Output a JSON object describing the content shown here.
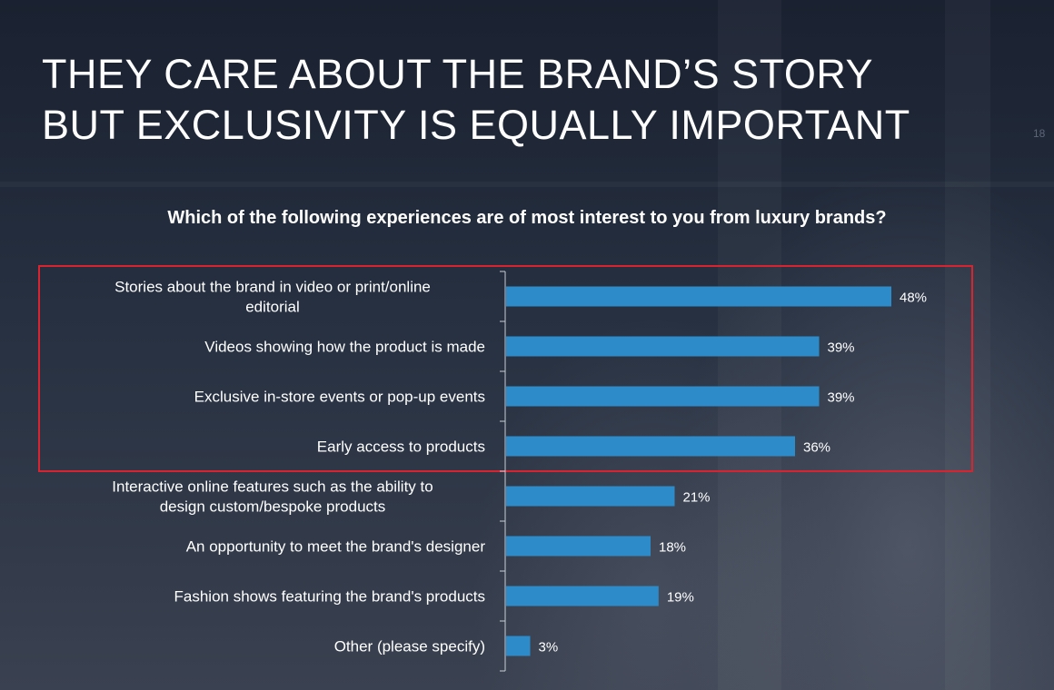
{
  "slide": {
    "title_line1": "THEY CARE ABOUT THE BRAND’S STORY",
    "title_line2": "BUT EXCLUSIVITY IS EQUALLY IMPORTANT",
    "page_number": "18",
    "highlight_color": "#d9232e"
  },
  "chart_data": {
    "type": "bar",
    "orientation": "horizontal",
    "title": "Which of the following experiences are of most interest to you from luxury brands?",
    "categories": [
      [
        "Stories about the brand in video or print/online",
        "editorial"
      ],
      [
        "Videos showing how the product is made"
      ],
      [
        "Exclusive in-store events or pop-up events"
      ],
      [
        "Early access to products"
      ],
      [
        "Interactive online features such as the ability to",
        "design custom/bespoke products"
      ],
      [
        "An opportunity to meet the brand's designer"
      ],
      [
        "Fashion shows featuring the brand's products"
      ],
      [
        "Other (please specify)"
      ]
    ],
    "values": [
      48,
      39,
      39,
      36,
      21,
      18,
      19,
      3
    ],
    "value_labels": [
      "48%",
      "39%",
      "39%",
      "36%",
      "21%",
      "18%",
      "19%",
      "3%"
    ],
    "unit": "%",
    "xlim": [
      0,
      48
    ],
    "bar_color": "#2e8bc9",
    "highlighted_categories": [
      0,
      1,
      2,
      3
    ],
    "grid": false,
    "legend": "none"
  }
}
